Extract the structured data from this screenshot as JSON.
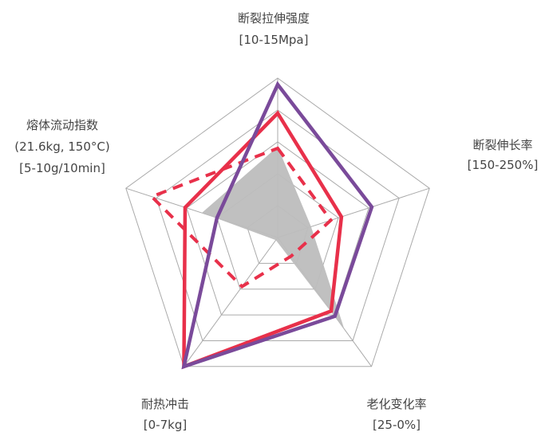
{
  "chart_data": {
    "type": "radar",
    "axes": [
      {
        "name": "断裂拉伸强度",
        "range": "[10-15Mpa]"
      },
      {
        "name": "断裂伸长率",
        "range": "[150-250%]"
      },
      {
        "name": "老化变化率",
        "range": "[25-0%]"
      },
      {
        "name": "耐热冲击",
        "range": "[0-7kg]"
      },
      {
        "name": "熔体流动指数",
        "range": "(21.6kg, 150°C)",
        "range2": "[5-10g/10min]"
      }
    ],
    "scale": {
      "min": 0,
      "max": 5,
      "rings": 5
    },
    "series": [
      {
        "style": "filled-gray",
        "color": "#bdbdbd",
        "values": [
          2.85,
          1.1,
          3.55,
          0.1,
          2.5
        ]
      },
      {
        "style": "dashed",
        "color": "#e8304a",
        "values": [
          2.8,
          1.75,
          0.72,
          1.9,
          4.15
        ]
      },
      {
        "style": "solid",
        "color": "#e8304a",
        "values": [
          3.9,
          2.1,
          2.85,
          5.0,
          3.05
        ]
      },
      {
        "style": "solid",
        "color": "#7a4a9a",
        "values": [
          4.8,
          3.1,
          3.05,
          5.0,
          2.0
        ]
      }
    ]
  }
}
